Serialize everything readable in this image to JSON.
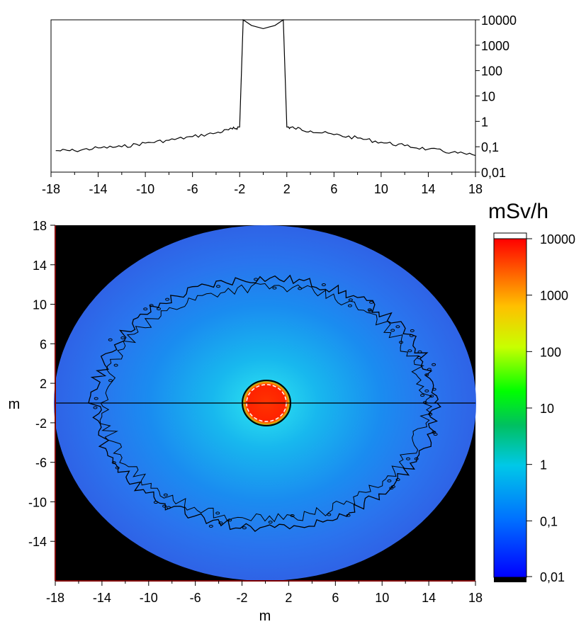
{
  "chart_data": [
    {
      "type": "line",
      "title": "",
      "xlabel": "",
      "ylabel": "",
      "xlim": [
        -18,
        18
      ],
      "ylim": [
        0.01,
        10000
      ],
      "yscale": "log",
      "y_axis_side": "right",
      "x_ticks": [
        -18,
        -14,
        -10,
        -6,
        -2,
        2,
        6,
        10,
        14,
        18
      ],
      "y_ticks": [
        10000,
        1000,
        100,
        10,
        1,
        0.1,
        0.01
      ],
      "y_tick_labels": [
        "10000",
        "1000",
        "100",
        "10",
        "1",
        "0,1",
        "0,01"
      ],
      "x_tick_labels": [
        "-18",
        "-14",
        "-10",
        "-6",
        "-2",
        "2",
        "6",
        "10",
        "14",
        "18"
      ],
      "series": [
        {
          "x": [
            -17.6,
            -16,
            -14,
            -12,
            -10,
            -8,
            -6,
            -4,
            -2.6,
            -2,
            -1.7,
            -1,
            0,
            1,
            1.7,
            2,
            2.6,
            4,
            6,
            8,
            10,
            12,
            14,
            16,
            18
          ],
          "y": [
            0.07,
            0.07,
            0.09,
            0.1,
            0.14,
            0.18,
            0.25,
            0.35,
            0.5,
            0.6,
            10000,
            6000,
            4500,
            6000,
            10000,
            0.6,
            0.55,
            0.42,
            0.3,
            0.22,
            0.15,
            0.11,
            0.08,
            0.06,
            0.045
          ]
        }
      ],
      "grid": false
    },
    {
      "type": "heatmap",
      "title": "",
      "xlabel": "m",
      "ylabel": "m",
      "xlim": [
        -18,
        18
      ],
      "ylim": [
        -18,
        18
      ],
      "x_ticks": [
        -18,
        -14,
        -10,
        -6,
        -2,
        2,
        6,
        10,
        14,
        18
      ],
      "x_tick_labels": [
        "-18",
        "-14",
        "-10",
        "-6",
        "-2",
        "2",
        "6",
        "10",
        "14",
        "18"
      ],
      "y_ticks": [
        18,
        14,
        10,
        6,
        2,
        -2,
        -6,
        -10,
        -14
      ],
      "y_tick_labels": [
        "18",
        "14",
        "10",
        "6",
        "2",
        "-2",
        "-6",
        "-10",
        "-14"
      ],
      "colorbar": {
        "title": "mSv/h",
        "scale": "log",
        "range": [
          0.01,
          10000
        ],
        "ticks": [
          10000,
          1000,
          100,
          10,
          1,
          0.1,
          0.01
        ],
        "tick_labels": [
          "10000",
          "1000",
          "100",
          "10",
          "1",
          "0,1",
          "0,01"
        ],
        "colors": [
          "#0000ff",
          "#0080ff",
          "#00d0e0",
          "#00c060",
          "#00ff00",
          "#d0ff00",
          "#ffc000",
          "#ff6000",
          "#ff0000"
        ]
      },
      "grid": false
    }
  ]
}
